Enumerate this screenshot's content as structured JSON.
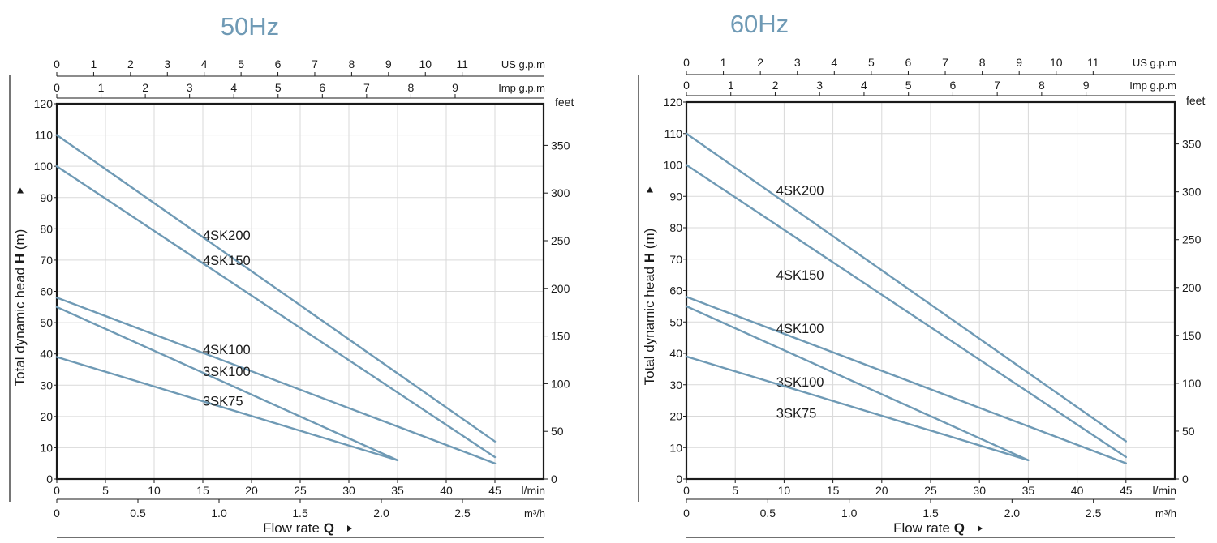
{
  "colors": {
    "curve": "#6f9ab5",
    "title": "#6f9ab5",
    "grid": "#d9d9d9",
    "axis": "#1a1a1a"
  },
  "axis_text": {
    "ylabel_prefix": "Total dynamic head ",
    "ylabel_bold": "H",
    "ylabel_suffix": " (m)",
    "xlabel_prefix": "Flow rate ",
    "xlabel_bold": "Q",
    "unit_us": "US g.p.m",
    "unit_imp": "Imp g.p.m",
    "unit_feet": "feet",
    "unit_lmin": "l/min",
    "unit_m3h": "m³/h"
  },
  "chart_data": [
    {
      "type": "line",
      "title": "50Hz",
      "xlabel": "Flow rate Q",
      "ylabel": "Total dynamic head H (m)",
      "xlim": [
        0,
        50
      ],
      "ylim": [
        0,
        120
      ],
      "grid": true,
      "x_ticks_lmin": [
        0,
        5,
        10,
        15,
        20,
        25,
        30,
        35,
        40,
        45
      ],
      "x_ticks_m3h": [
        "0",
        "0.5",
        "1.0",
        "1.5",
        "2.0",
        "2.5"
      ],
      "x_ticks_us_gpm": [
        0,
        1,
        2,
        3,
        4,
        5,
        6,
        7,
        8,
        9,
        10,
        11
      ],
      "x_ticks_imp_gpm": [
        0,
        1,
        2,
        3,
        4,
        5,
        6,
        7,
        8,
        9
      ],
      "y_ticks_m": [
        0,
        10,
        20,
        30,
        40,
        50,
        60,
        70,
        80,
        90,
        100,
        110,
        120
      ],
      "y_ticks_feet": [
        0,
        50,
        100,
        150,
        200,
        250,
        300,
        350
      ],
      "series": [
        {
          "name": "4SK200",
          "x": [
            0,
            45
          ],
          "y": [
            110,
            12
          ],
          "label_at": [
            15,
            78
          ]
        },
        {
          "name": "4SK150",
          "x": [
            0,
            45
          ],
          "y": [
            100,
            7
          ],
          "label_at": [
            15,
            70
          ]
        },
        {
          "name": "4SK100",
          "x": [
            0,
            45
          ],
          "y": [
            58,
            5
          ],
          "label_at": [
            15,
            41.5
          ]
        },
        {
          "name": "3SK100",
          "x": [
            0,
            35
          ],
          "y": [
            55,
            6
          ],
          "label_at": [
            15,
            34.5
          ]
        },
        {
          "name": "3SK75",
          "x": [
            0,
            35
          ],
          "y": [
            39,
            6
          ],
          "label_at": [
            15,
            25
          ]
        }
      ]
    },
    {
      "type": "line",
      "title": "60Hz",
      "xlabel": "Flow rate Q",
      "ylabel": "Total dynamic head H (m)",
      "xlim": [
        0,
        50
      ],
      "ylim": [
        0,
        120
      ],
      "grid": true,
      "x_ticks_lmin": [
        0,
        5,
        10,
        15,
        20,
        25,
        30,
        35,
        40,
        45
      ],
      "x_ticks_m3h": [
        "0",
        "0.5",
        "1.0",
        "1.5",
        "2.0",
        "2.5"
      ],
      "x_ticks_us_gpm": [
        0,
        1,
        2,
        3,
        4,
        5,
        6,
        7,
        8,
        9,
        10,
        11
      ],
      "x_ticks_imp_gpm": [
        0,
        1,
        2,
        3,
        4,
        5,
        6,
        7,
        8,
        9
      ],
      "y_ticks_m": [
        0,
        10,
        20,
        30,
        40,
        50,
        60,
        70,
        80,
        90,
        100,
        110,
        120
      ],
      "y_ticks_feet": [
        0,
        50,
        100,
        150,
        200,
        250,
        300,
        350
      ],
      "series": [
        {
          "name": "4SK200",
          "x": [
            0,
            45
          ],
          "y": [
            110,
            12
          ],
          "label_at": [
            9.2,
            92
          ]
        },
        {
          "name": "4SK150",
          "x": [
            0,
            45
          ],
          "y": [
            100,
            7
          ],
          "label_at": [
            9.2,
            65
          ]
        },
        {
          "name": "4SK100",
          "x": [
            0,
            45
          ],
          "y": [
            58,
            5
          ],
          "label_at": [
            9.2,
            48
          ]
        },
        {
          "name": "3SK100",
          "x": [
            0,
            35
          ],
          "y": [
            55,
            6
          ],
          "label_at": [
            9.2,
            31
          ]
        },
        {
          "name": "3SK75",
          "x": [
            0,
            35
          ],
          "y": [
            39,
            6
          ],
          "label_at": [
            9.2,
            21
          ]
        }
      ]
    }
  ]
}
